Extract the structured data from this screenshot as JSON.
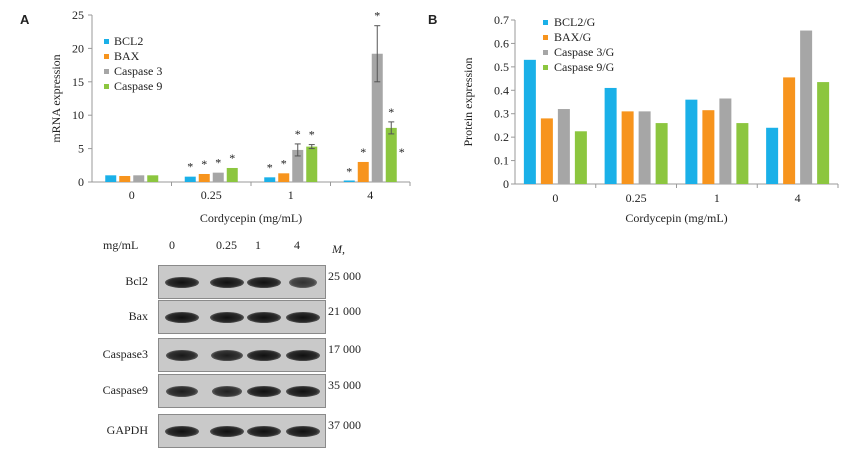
{
  "panels": {
    "a": "A",
    "b": "B"
  },
  "colors": {
    "bcl2": "#1ab0e8",
    "bax": "#f7941d",
    "caspase3": "#a6a6a6",
    "caspase9": "#8cc63f"
  },
  "chart_data": [
    {
      "type": "bar",
      "ylabel": "mRNA expression",
      "xlabel": "Cordycepin (mg/mL)",
      "categories": [
        "0",
        "0.25",
        "1",
        "4"
      ],
      "ylim": [
        0,
        25
      ],
      "yticks": [
        0,
        5,
        10,
        15,
        20,
        25
      ],
      "legend_position": "top-left",
      "series": [
        {
          "name": "BCL2",
          "values": [
            1.0,
            0.8,
            0.7,
            0.1
          ],
          "errors": [
            0,
            0,
            0,
            0
          ],
          "sig": [
            "",
            "*",
            "*",
            "*"
          ]
        },
        {
          "name": "BAX",
          "values": [
            0.9,
            1.2,
            1.3,
            3.0
          ],
          "errors": [
            0,
            0,
            0,
            0
          ],
          "sig": [
            "",
            "*",
            "*",
            "*"
          ]
        },
        {
          "name": "Caspase 3",
          "values": [
            1.0,
            1.4,
            4.8,
            19.2
          ],
          "errors": [
            0,
            0,
            0.9,
            4.2
          ],
          "sig": [
            "",
            "*",
            "*",
            "*"
          ]
        },
        {
          "name": "Caspase 9",
          "values": [
            1.0,
            2.1,
            5.3,
            8.1
          ],
          "errors": [
            0,
            0,
            0.3,
            0.9
          ],
          "sig": [
            "",
            "*",
            "*",
            "*"
          ]
        }
      ]
    },
    {
      "type": "bar",
      "ylabel": "Protein expression",
      "xlabel": "Cordycepin (mg/mL)",
      "categories": [
        "0",
        "0.25",
        "1",
        "4"
      ],
      "ylim": [
        0,
        0.7
      ],
      "yticks": [
        "0",
        "0.1",
        "0.2",
        "0.3",
        "0.4",
        "0.5",
        "0.6",
        "0.7"
      ],
      "legend_position": "top-left",
      "series": [
        {
          "name": "BCL2/G",
          "values": [
            0.53,
            0.41,
            0.36,
            0.24
          ]
        },
        {
          "name": "BAX/G",
          "values": [
            0.28,
            0.31,
            0.315,
            0.455
          ]
        },
        {
          "name": "Caspase 3/G",
          "values": [
            0.32,
            0.31,
            0.365,
            0.655
          ]
        },
        {
          "name": "Caspase 9/G",
          "values": [
            0.225,
            0.26,
            0.26,
            0.435
          ]
        }
      ]
    }
  ],
  "blot": {
    "unit_label": "mg/mL",
    "mw_header": "M,",
    "lanes": [
      "0",
      "0.25",
      "1",
      "4"
    ],
    "rows": [
      {
        "name": "Bcl2",
        "mw": "25 000",
        "intensity": [
          1.0,
          1.0,
          1.0,
          0.6
        ]
      },
      {
        "name": "Bax",
        "mw": "21 000",
        "intensity": [
          1.0,
          1.0,
          1.0,
          1.0
        ]
      },
      {
        "name": "Caspase3",
        "mw": "17 000",
        "intensity": [
          0.9,
          0.85,
          1.0,
          1.0
        ]
      },
      {
        "name": "Caspase9",
        "mw": "35 000",
        "intensity": [
          0.85,
          0.8,
          1.0,
          1.0
        ]
      },
      {
        "name": "GAPDH",
        "mw": "37 000",
        "intensity": [
          1.0,
          1.0,
          1.0,
          1.0
        ]
      }
    ]
  }
}
